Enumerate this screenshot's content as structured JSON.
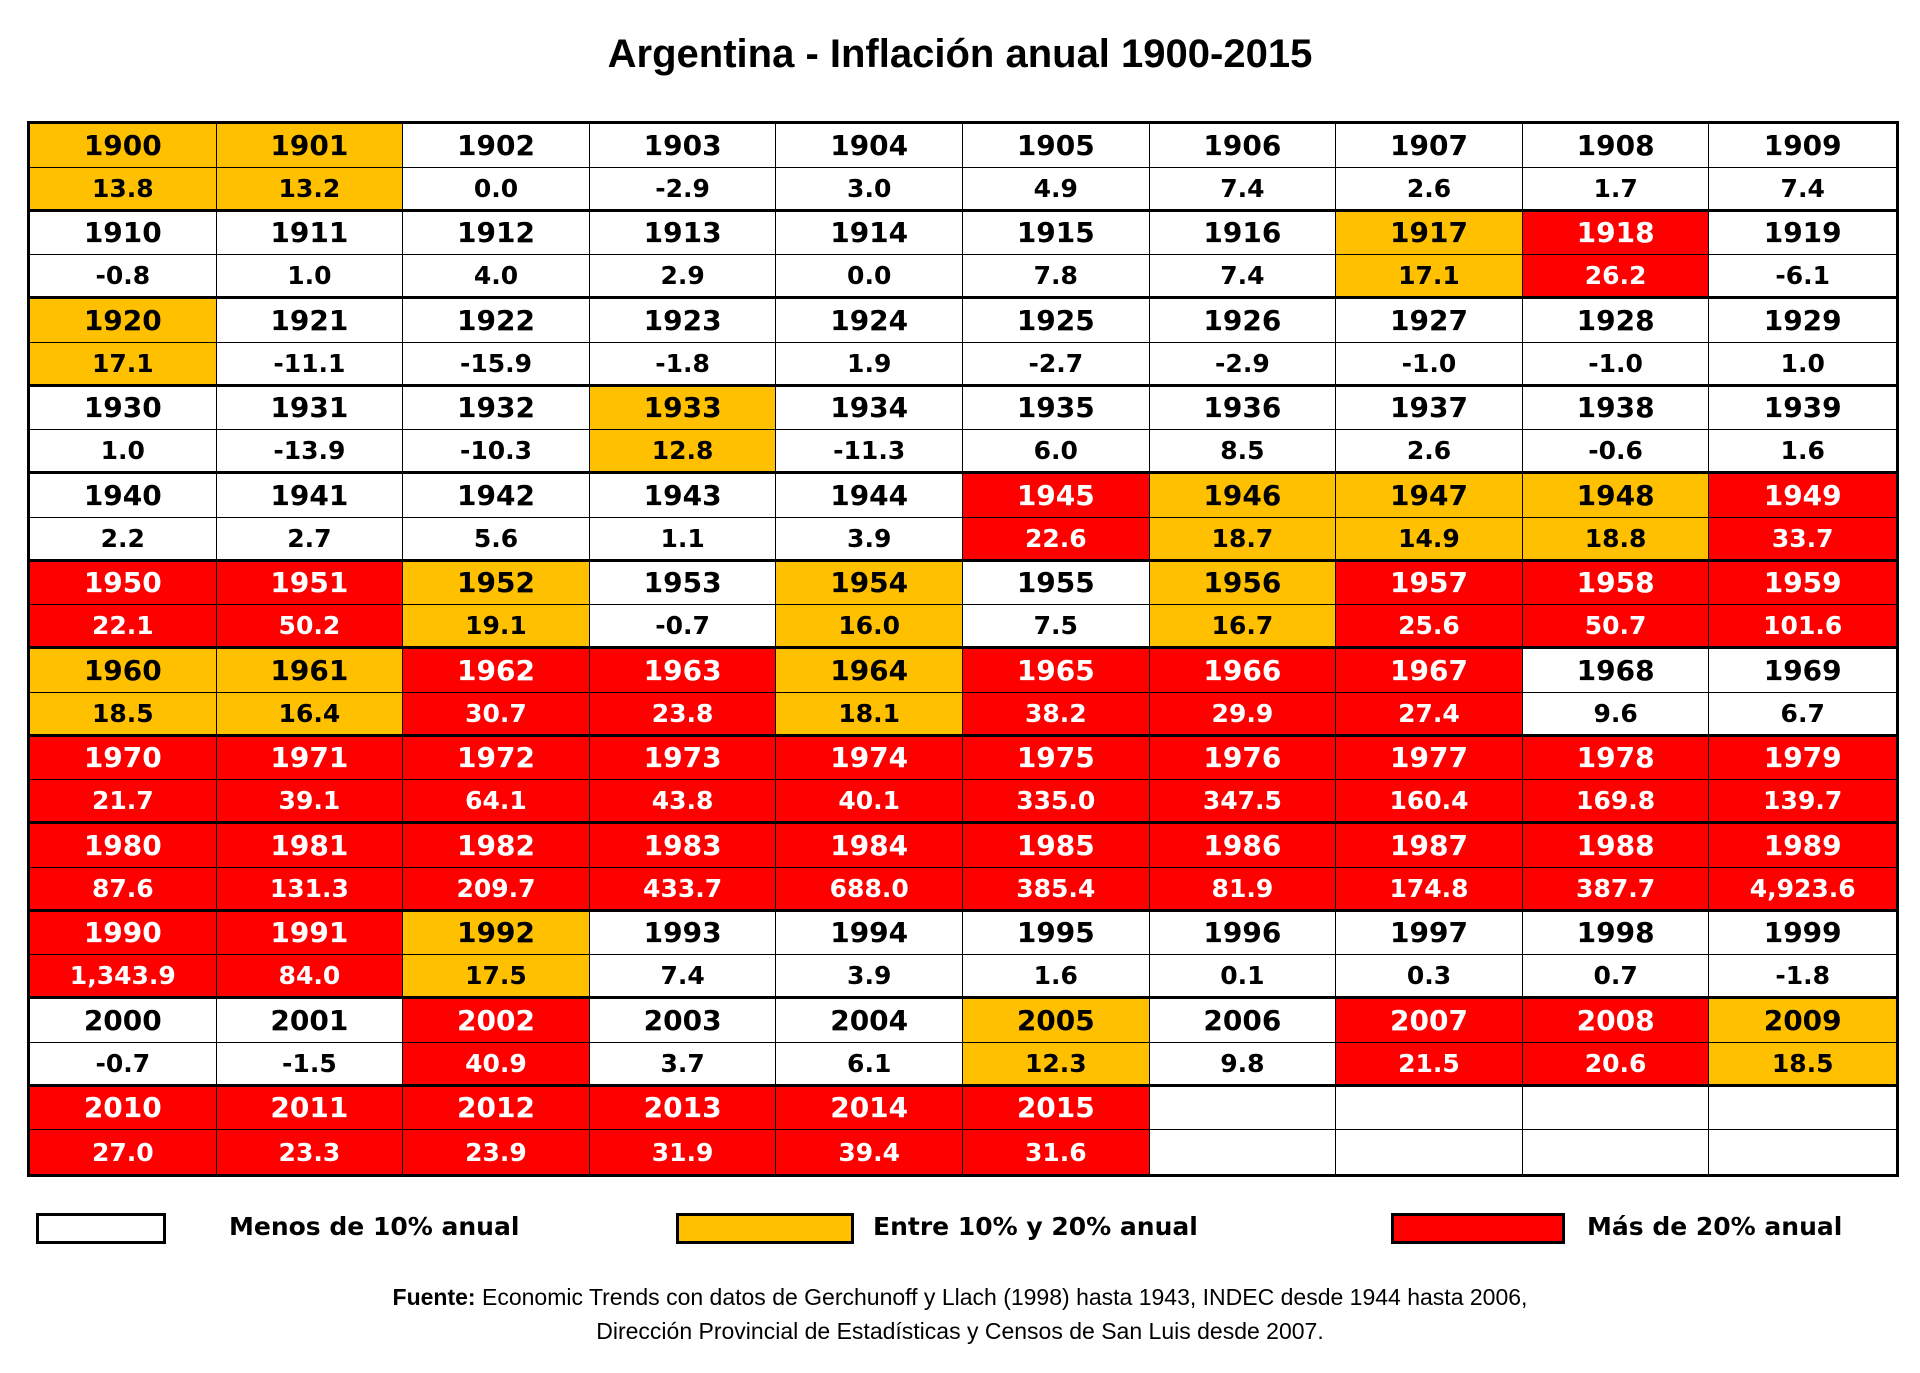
{
  "chart_data": {
    "type": "table",
    "title": "Argentina - Inflación anual 1900-2015",
    "colors": {
      "low": "#ffffff",
      "mid": "#ffc000",
      "high": "#ff0000"
    },
    "legend": [
      {
        "key": "low",
        "label": "Menos de 10% anual"
      },
      {
        "key": "mid",
        "label": "Entre 10% y 20% anual"
      },
      {
        "key": "high",
        "label": "Más de 20% anual"
      }
    ],
    "years": [
      1900,
      1901,
      1902,
      1903,
      1904,
      1905,
      1906,
      1907,
      1908,
      1909,
      1910,
      1911,
      1912,
      1913,
      1914,
      1915,
      1916,
      1917,
      1918,
      1919,
      1920,
      1921,
      1922,
      1923,
      1924,
      1925,
      1926,
      1927,
      1928,
      1929,
      1930,
      1931,
      1932,
      1933,
      1934,
      1935,
      1936,
      1937,
      1938,
      1939,
      1940,
      1941,
      1942,
      1943,
      1944,
      1945,
      1946,
      1947,
      1948,
      1949,
      1950,
      1951,
      1952,
      1953,
      1954,
      1955,
      1956,
      1957,
      1958,
      1959,
      1960,
      1961,
      1962,
      1963,
      1964,
      1965,
      1966,
      1967,
      1968,
      1969,
      1970,
      1971,
      1972,
      1973,
      1974,
      1975,
      1976,
      1977,
      1978,
      1979,
      1980,
      1981,
      1982,
      1983,
      1984,
      1985,
      1986,
      1987,
      1988,
      1989,
      1990,
      1991,
      1992,
      1993,
      1994,
      1995,
      1996,
      1997,
      1998,
      1999,
      2000,
      2001,
      2002,
      2003,
      2004,
      2005,
      2006,
      2007,
      2008,
      2009,
      2010,
      2011,
      2012,
      2013,
      2014,
      2015
    ],
    "values": [
      "13.8",
      "13.2",
      "0.0",
      "-2.9",
      "3.0",
      "4.9",
      "7.4",
      "2.6",
      "1.7",
      "7.4",
      "-0.8",
      "1.0",
      "4.0",
      "2.9",
      "0.0",
      "7.8",
      "7.4",
      "17.1",
      "26.2",
      "-6.1",
      "17.1",
      "-11.1",
      "-15.9",
      "-1.8",
      "1.9",
      "-2.7",
      "-2.9",
      "-1.0",
      "-1.0",
      "1.0",
      "1.0",
      "-13.9",
      "-10.3",
      "12.8",
      "-11.3",
      "6.0",
      "8.5",
      "2.6",
      "-0.6",
      "1.6",
      "2.2",
      "2.7",
      "5.6",
      "1.1",
      "3.9",
      "22.6",
      "18.7",
      "14.9",
      "18.8",
      "33.7",
      "22.1",
      "50.2",
      "19.1",
      "-0.7",
      "16.0",
      "7.5",
      "16.7",
      "25.6",
      "50.7",
      "101.6",
      "18.5",
      "16.4",
      "30.7",
      "23.8",
      "18.1",
      "38.2",
      "29.9",
      "27.4",
      "9.6",
      "6.7",
      "21.7",
      "39.1",
      "64.1",
      "43.8",
      "40.1",
      "335.0",
      "347.5",
      "160.4",
      "169.8",
      "139.7",
      "87.6",
      "131.3",
      "209.7",
      "433.7",
      "688.0",
      "385.4",
      "81.9",
      "174.8",
      "387.7",
      "4,923.6",
      "1,343.9",
      "84.0",
      "17.5",
      "7.4",
      "3.9",
      "1.6",
      "0.1",
      "0.3",
      "0.7",
      "-1.8",
      "-0.7",
      "-1.5",
      "40.9",
      "3.7",
      "6.1",
      "12.3",
      "9.8",
      "21.5",
      "20.6",
      "18.5",
      "27.0",
      "23.3",
      "23.9",
      "31.9",
      "39.4",
      "31.6"
    ],
    "categories": [
      "mid",
      "mid",
      "low",
      "low",
      "low",
      "low",
      "low",
      "low",
      "low",
      "low",
      "low",
      "low",
      "low",
      "low",
      "low",
      "low",
      "low",
      "mid",
      "high",
      "low",
      "mid",
      "low",
      "low",
      "low",
      "low",
      "low",
      "low",
      "low",
      "low",
      "low",
      "low",
      "low",
      "low",
      "mid",
      "low",
      "low",
      "low",
      "low",
      "low",
      "low",
      "low",
      "low",
      "low",
      "low",
      "low",
      "high",
      "mid",
      "mid",
      "mid",
      "high",
      "high",
      "high",
      "mid",
      "low",
      "mid",
      "low",
      "mid",
      "high",
      "high",
      "high",
      "mid",
      "mid",
      "high",
      "high",
      "mid",
      "high",
      "high",
      "high",
      "low",
      "low",
      "high",
      "high",
      "high",
      "high",
      "high",
      "high",
      "high",
      "high",
      "high",
      "high",
      "high",
      "high",
      "high",
      "high",
      "high",
      "high",
      "high",
      "high",
      "high",
      "high",
      "high",
      "high",
      "mid",
      "low",
      "low",
      "low",
      "low",
      "low",
      "low",
      "low",
      "low",
      "low",
      "high",
      "low",
      "low",
      "mid",
      "low",
      "high",
      "high",
      "mid",
      "high",
      "high",
      "high",
      "high",
      "high",
      "high"
    ],
    "columns": 10
  },
  "source": {
    "label": "Fuente:",
    "line1": "Economic Trends con datos de Gerchunoff y Llach (1998) hasta 1943, INDEC desde 1944 hasta 2006,",
    "line2": "Dirección Provincial de Estadísticas y Censos de San Luis desde 2007."
  }
}
